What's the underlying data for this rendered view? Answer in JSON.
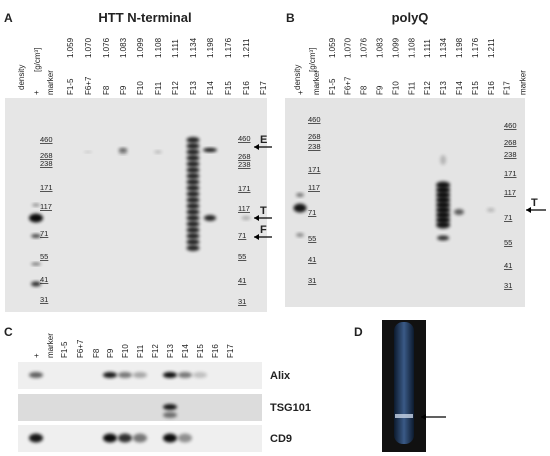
{
  "panels": [
    {
      "label": "A",
      "title": "HTT N-terminal",
      "density_label": "density",
      "unit_label": "[g/cm³]",
      "densities": [
        "1.059",
        "1.070",
        "1.076",
        "1.083",
        "1.099",
        "1.108",
        "1.111",
        "1.134",
        "1.198",
        "1.176",
        "1.211"
      ],
      "lanes": [
        "+",
        "marker",
        "F1-5",
        "F6+7",
        "F8",
        "F9",
        "F10",
        "F11",
        "F12",
        "F13",
        "F14",
        "F15",
        "F16",
        "F17"
      ],
      "markers_left": [
        "460",
        "268",
        "238",
        "171",
        "117",
        "71",
        "55",
        "41",
        "31"
      ],
      "markers_right": [
        "460",
        "268",
        "238",
        "171",
        "117",
        "71",
        "55",
        "41",
        "31"
      ],
      "arrows": [
        "E",
        "T",
        "F"
      ]
    },
    {
      "label": "B",
      "title": "polyQ",
      "density_label": "density",
      "unit_label": "[g/cm³]",
      "densities": [
        "1.059",
        "1.070",
        "1.076",
        "1.083",
        "1.099",
        "1.108",
        "1.111",
        "1.134",
        "1.198",
        "1.176",
        "1.211"
      ],
      "lanes": [
        "+",
        "marker",
        "F1-5",
        "F6+7",
        "F8",
        "F9",
        "F10",
        "F11",
        "F12",
        "F13",
        "F14",
        "F15",
        "F16",
        "F17",
        "marker"
      ],
      "markers_left": [
        "460",
        "268",
        "238",
        "171",
        "117",
        "71",
        "55",
        "41",
        "31"
      ],
      "markers_right": [
        "460",
        "268",
        "238",
        "171",
        "117",
        "71",
        "55",
        "41",
        "31"
      ],
      "arrows": [
        "T"
      ]
    },
    {
      "label": "C",
      "lanes": [
        "+",
        "marker",
        "F1-5",
        "F6+7",
        "F8",
        "F9",
        "F10",
        "F11",
        "F12",
        "F13",
        "F14",
        "F15",
        "F16",
        "F17"
      ],
      "rows": [
        "Alix",
        "TSG101",
        "CD9"
      ]
    },
    {
      "label": "D"
    }
  ]
}
